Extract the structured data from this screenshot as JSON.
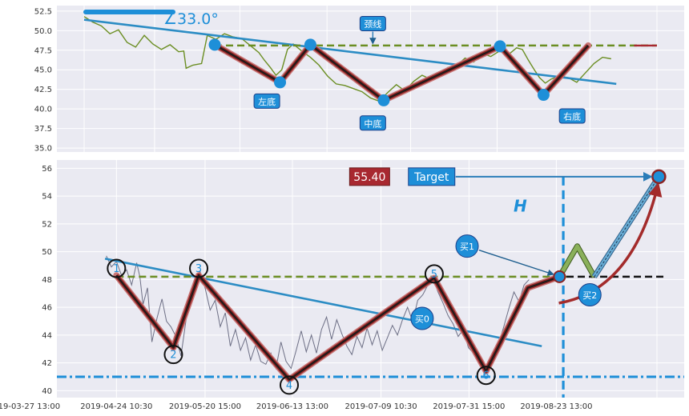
{
  "colors": {
    "background": "#eaeaf2",
    "grid": "#ffffff",
    "price_top": "#6b8e23",
    "price_bottom": "#6d6f85",
    "trend_line": "#2b8cc4",
    "neckline": "#6b8e23",
    "zigzag_outer": "#c97676",
    "zigzag_inner": "#1a1a1a",
    "zigzag_mid": "#8b2323",
    "point_fill": "#1e8fd8",
    "label_fill": "#1e8fd8",
    "value_box_fill": "#a82830",
    "support_line": "#1e8fd8",
    "target_line": "#2a7cb8",
    "measure_line": "#1e8fd8",
    "breakout_line": "#111111",
    "green_path": "#8ab05a",
    "blue_path": "#6aaed6",
    "red_curve": "#a32b2b"
  },
  "chart_data": [
    {
      "type": "line",
      "panel": "top",
      "ylim": [
        34.5,
        53.2
      ],
      "yticks": [
        "35.0",
        "37.5",
        "40.0",
        "42.5",
        "45.0",
        "47.5",
        "50.0",
        "52.5"
      ],
      "ytick_values": [
        35.0,
        37.5,
        40.0,
        42.5,
        45.0,
        47.5,
        50.0,
        52.5
      ],
      "xlim": [
        0,
        100
      ],
      "vgrid": [
        0,
        12.3,
        27.2,
        42.4,
        57.0,
        72.1,
        88.3,
        100
      ],
      "angle_label": "∠33.0°",
      "annotations": [
        {
          "text": "颈线",
          "x": 50.4,
          "y": 50.9
        },
        {
          "text": "左底",
          "x": 31.9,
          "y": 41.0
        },
        {
          "text": "中底",
          "x": 50.4,
          "y": 38.2
        },
        {
          "text": "右底",
          "x": 85.2,
          "y": 39.1
        }
      ],
      "neckline": {
        "x": [
          22.8,
          100
        ],
        "y": 48.1
      },
      "trend": {
        "x": [
          0,
          92.9
        ],
        "y": [
          51.4,
          43.2
        ]
      },
      "series": [
        {
          "values": [
            [
              0,
              51.8
            ],
            [
              1.5,
              51.1
            ],
            [
              3,
              50.6
            ],
            [
              4.5,
              49.6
            ],
            [
              6,
              50.1
            ],
            [
              7.5,
              48.5
            ],
            [
              9,
              47.9
            ],
            [
              10.5,
              49.4
            ],
            [
              12,
              48.3
            ],
            [
              13.5,
              47.6
            ],
            [
              15,
              48.2
            ],
            [
              16.5,
              47.3
            ],
            [
              17.4,
              47.4
            ],
            [
              17.8,
              45.2
            ],
            [
              19,
              45.6
            ],
            [
              20.5,
              45.8
            ],
            [
              21.5,
              49.4
            ],
            [
              23,
              48.9
            ],
            [
              24.5,
              49.6
            ],
            [
              26,
              49.2
            ],
            [
              27.5,
              49.0
            ],
            [
              29,
              48.1
            ],
            [
              30.5,
              47.2
            ],
            [
              31.5,
              46.2
            ],
            [
              32.5,
              45.3
            ],
            [
              33.5,
              44.3
            ],
            [
              34.5,
              45.0
            ],
            [
              35.5,
              47.6
            ],
            [
              36.5,
              48.3
            ],
            [
              38,
              47.4
            ],
            [
              39.5,
              46.6
            ],
            [
              41,
              45.6
            ],
            [
              42.5,
              44.2
            ],
            [
              44,
              43.2
            ],
            [
              45.5,
              43.0
            ],
            [
              47,
              42.6
            ],
            [
              48.5,
              42.2
            ],
            [
              50,
              41.4
            ],
            [
              51.5,
              41.0
            ],
            [
              53,
              42.1
            ],
            [
              54.5,
              43.1
            ],
            [
              56,
              42.3
            ],
            [
              57.5,
              43.5
            ],
            [
              59,
              44.3
            ],
            [
              60.5,
              43.8
            ],
            [
              62,
              44.4
            ],
            [
              63.5,
              45.3
            ],
            [
              65,
              45.5
            ],
            [
              66.5,
              46.5
            ],
            [
              68,
              46.0
            ],
            [
              69.5,
              47.1
            ],
            [
              71,
              46.7
            ],
            [
              72.5,
              47.4
            ],
            [
              74,
              46.9
            ],
            [
              75.5,
              47.8
            ],
            [
              76.5,
              47.6
            ],
            [
              77.5,
              46.3
            ],
            [
              78.5,
              45.1
            ],
            [
              79.5,
              44.0
            ],
            [
              80.5,
              43.3
            ],
            [
              81.5,
              43.8
            ],
            [
              83,
              44.2
            ],
            [
              84.5,
              44.0
            ],
            [
              86,
              43.4
            ],
            [
              87.5,
              44.6
            ],
            [
              89,
              45.8
            ],
            [
              90.5,
              46.6
            ],
            [
              92,
              46.4
            ]
          ]
        }
      ],
      "zigzag": [
        [
          22.8,
          48.2
        ],
        [
          34.2,
          43.4
        ],
        [
          39.5,
          48.2
        ],
        [
          52.3,
          41.1
        ],
        [
          72.6,
          48.0
        ],
        [
          80.2,
          41.8
        ],
        [
          88.0,
          48.1
        ]
      ],
      "markers": [
        [
          22.8,
          48.2
        ],
        [
          34.2,
          43.4
        ],
        [
          39.5,
          48.2
        ],
        [
          52.3,
          41.1
        ],
        [
          72.6,
          48.0
        ],
        [
          80.2,
          41.8
        ]
      ]
    },
    {
      "type": "line",
      "panel": "bottom",
      "ylim": [
        39.5,
        56.6
      ],
      "yticks": [
        "40",
        "42",
        "44",
        "46",
        "48",
        "50",
        "52",
        "54",
        "56"
      ],
      "ytick_values": [
        40,
        42,
        44,
        46,
        48,
        50,
        52,
        54,
        56
      ],
      "xticks": [
        "2019-03-27 13:00",
        "2019-04-24 10:30",
        "2019-05-20 15:00",
        "2019-06-13 13:00",
        "2019-07-09 10:30",
        "2019-07-31 15:00",
        "2019-08-23 13:00"
      ],
      "xtick_positions": [
        0,
        14.6,
        28.6,
        42.4,
        56.4,
        70.3,
        84.1
      ],
      "vgrid": [
        14.6,
        28.6,
        42.4,
        56.4,
        70.3,
        84.1,
        100
      ],
      "xlim": [
        0,
        100
      ],
      "value_box": {
        "text": "55.40",
        "x": 54.6,
        "y": 55.4
      },
      "target_label": {
        "text": "Target",
        "x": 64.4,
        "y": 55.4
      },
      "h_label": {
        "text": "H",
        "x": 78.4,
        "y": 53.3
      },
      "buy_labels": [
        {
          "text": "买1",
          "x": 70.0,
          "y": 50.4
        },
        {
          "text": "买0",
          "x": 62.9,
          "y": 45.2
        },
        {
          "text": "买2",
          "x": 89.4,
          "y": 46.9
        }
      ],
      "point_labels": [
        {
          "text": "1",
          "x": 14.6,
          "y": 48.8
        },
        {
          "text": "2",
          "x": 23.6,
          "y": 42.6
        },
        {
          "text": "3",
          "x": 27.6,
          "y": 48.8
        },
        {
          "text": "4",
          "x": 41.9,
          "y": 40.4
        },
        {
          "text": "5",
          "x": 64.8,
          "y": 48.4
        },
        {
          "text": "6",
          "x": 73.0,
          "y": 41.1
        }
      ],
      "support": {
        "y": 41.0
      },
      "neckline": {
        "x": [
          14.6,
          85.7
        ],
        "y": 48.2
      },
      "breakout": {
        "x": [
          85.7,
          101.5
        ],
        "y": 48.2
      },
      "measure_x": 85.2,
      "target_y": 55.4,
      "trend": {
        "x": [
          12.8,
          81.8
        ],
        "y": [
          49.5,
          43.2
        ]
      },
      "series": [
        {
          "values": [
            [
              13.0,
              49.7
            ],
            [
              13.8,
              48.9
            ],
            [
              14.6,
              49.3
            ],
            [
              15.4,
              48.3
            ],
            [
              16.2,
              48.7
            ],
            [
              17.0,
              47.6
            ],
            [
              17.8,
              49.2
            ],
            [
              18.3,
              48.2
            ],
            [
              18.8,
              46.2
            ],
            [
              19.5,
              47.4
            ],
            [
              20.2,
              43.5
            ],
            [
              21.0,
              45.2
            ],
            [
              21.8,
              46.6
            ],
            [
              22.5,
              45.0
            ],
            [
              23.2,
              44.6
            ],
            [
              24.0,
              43.9
            ],
            [
              24.8,
              42.5
            ],
            [
              25.5,
              44.8
            ],
            [
              26.3,
              47.1
            ],
            [
              27.0,
              47.9
            ],
            [
              27.8,
              48.6
            ],
            [
              28.6,
              47.4
            ],
            [
              29.4,
              45.8
            ],
            [
              30.2,
              46.5
            ],
            [
              31.0,
              44.6
            ],
            [
              31.8,
              45.6
            ],
            [
              32.6,
              43.2
            ],
            [
              33.4,
              44.4
            ],
            [
              34.2,
              42.9
            ],
            [
              35.0,
              43.8
            ],
            [
              35.8,
              42.2
            ],
            [
              36.6,
              43.3
            ],
            [
              37.4,
              42.1
            ],
            [
              38.2,
              41.9
            ],
            [
              39.0,
              42.7
            ],
            [
              39.8,
              41.6
            ],
            [
              40.6,
              43.5
            ],
            [
              41.4,
              42.1
            ],
            [
              42.2,
              41.6
            ],
            [
              43.0,
              42.9
            ],
            [
              43.8,
              44.3
            ],
            [
              44.6,
              42.8
            ],
            [
              45.4,
              44.0
            ],
            [
              46.2,
              42.7
            ],
            [
              47.0,
              44.4
            ],
            [
              47.8,
              45.3
            ],
            [
              48.6,
              43.7
            ],
            [
              49.4,
              45.1
            ],
            [
              50.2,
              44.1
            ],
            [
              51.0,
              43.2
            ],
            [
              51.8,
              42.6
            ],
            [
              52.6,
              43.9
            ],
            [
              53.4,
              43.1
            ],
            [
              54.2,
              44.5
            ],
            [
              55.0,
              43.3
            ],
            [
              55.8,
              44.3
            ],
            [
              56.6,
              42.9
            ],
            [
              57.4,
              43.8
            ],
            [
              58.2,
              44.7
            ],
            [
              59.0,
              44.0
            ],
            [
              59.8,
              45.1
            ],
            [
              60.6,
              46.0
            ],
            [
              61.4,
              45.0
            ],
            [
              62.2,
              46.5
            ],
            [
              63.0,
              46.9
            ],
            [
              63.8,
              47.6
            ],
            [
              64.6,
              48.1
            ],
            [
              65.4,
              47.1
            ],
            [
              66.2,
              46.3
            ],
            [
              67.0,
              45.4
            ],
            [
              67.8,
              44.8
            ],
            [
              68.6,
              43.9
            ],
            [
              69.4,
              44.4
            ],
            [
              70.2,
              43.1
            ],
            [
              71.0,
              42.7
            ],
            [
              71.8,
              42.3
            ],
            [
              72.6,
              41.4
            ],
            [
              73.4,
              41.7
            ],
            [
              74.2,
              42.2
            ],
            [
              75.0,
              43.4
            ],
            [
              75.8,
              44.6
            ],
            [
              76.6,
              45.9
            ],
            [
              77.4,
              47.1
            ],
            [
              78.2,
              46.4
            ],
            [
              79.0,
              47.6
            ],
            [
              79.8,
              48.0
            ]
          ]
        }
      ],
      "zigzag": [
        [
          14.6,
          48.3
        ],
        [
          23.6,
          43.1
        ],
        [
          27.6,
          48.3
        ],
        [
          41.9,
          40.8
        ],
        [
          64.8,
          48.1
        ],
        [
          73.0,
          41.4
        ],
        [
          79.6,
          47.4
        ],
        [
          84.6,
          48.2
        ]
      ],
      "markers": [
        [
          14.6,
          48.8
        ],
        [
          23.6,
          42.6
        ],
        [
          27.6,
          48.8
        ],
        [
          41.9,
          40.4
        ],
        [
          64.8,
          48.4
        ],
        [
          73.0,
          41.1
        ]
      ],
      "green_path": [
        [
          84.6,
          48.2
        ],
        [
          87.4,
          50.4
        ],
        [
          90.1,
          48.2
        ]
      ],
      "blue_path": [
        [
          90.1,
          48.2
        ],
        [
          100.3,
          55.4
        ]
      ],
      "red_curve": {
        "from": [
          84.5,
          46.3
        ],
        "ctrl": [
          96.0,
          47.2
        ],
        "to": [
          100.1,
          54.7
        ]
      }
    }
  ]
}
